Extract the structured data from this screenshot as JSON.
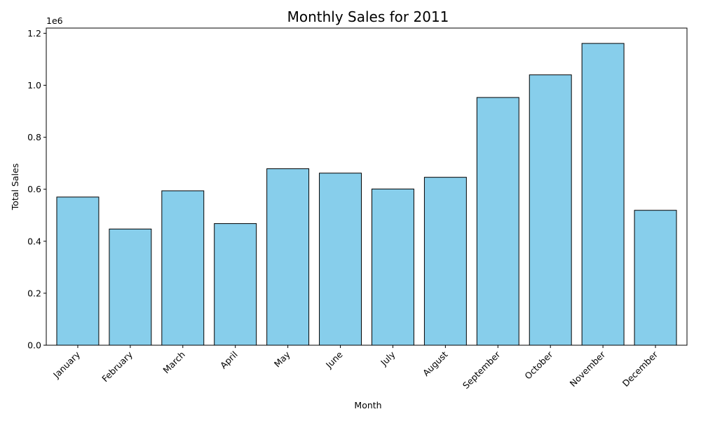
{
  "chart_data": {
    "type": "bar",
    "title": "Monthly Sales for 2011",
    "xlabel": "Month",
    "ylabel": "Total Sales",
    "y_offset_label": "1e6",
    "categories": [
      "January",
      "February",
      "March",
      "April",
      "May",
      "June",
      "July",
      "August",
      "September",
      "October",
      "November",
      "December"
    ],
    "values": [
      570000,
      447000,
      594000,
      468000,
      679000,
      662000,
      601000,
      646000,
      953000,
      1040000,
      1161000,
      519000
    ],
    "ylim": [
      0,
      1220000
    ],
    "yticks": [
      0,
      200000,
      400000,
      600000,
      800000,
      1000000,
      1200000
    ],
    "ytick_labels": [
      "0.0",
      "0.2",
      "0.4",
      "0.6",
      "0.8",
      "1.0",
      "1.2"
    ],
    "bar_color": "#87ceeb",
    "edge_color": "#000000",
    "grid": false,
    "legend": "none"
  }
}
